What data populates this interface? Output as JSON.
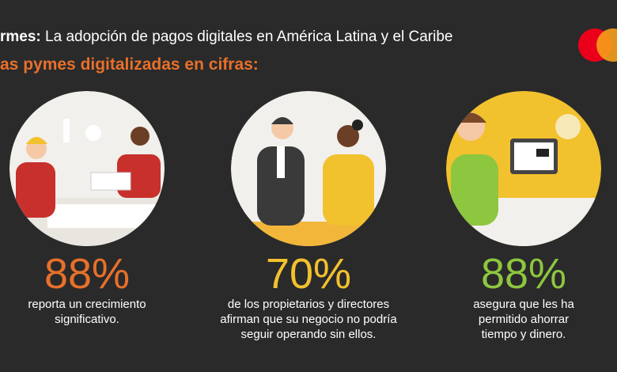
{
  "header": {
    "title_bold": "rmes:",
    "title": "La adopción de pagos digitales en América Latina y el Caribe",
    "subtitle": "as pymes digitalizadas en cifras:"
  },
  "stats": [
    {
      "value": "88%",
      "lines": [
        "reporta un crecimiento",
        "significativo."
      ]
    },
    {
      "value": "70%",
      "lines": [
        "de los propietarios y directores",
        "afirman que su negocio no podría",
        "seguir operando sin ellos."
      ]
    },
    {
      "value": "88%",
      "lines": [
        "asegura que les ha",
        "permitido ahorrar",
        "tiempo y dinero."
      ]
    }
  ]
}
